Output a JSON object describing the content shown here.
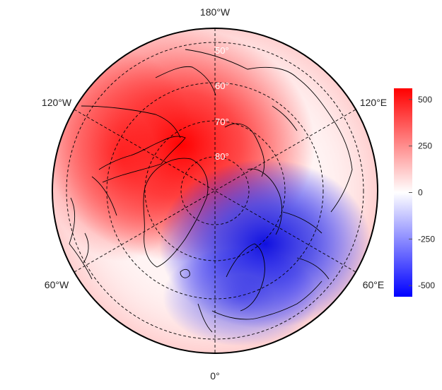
{
  "map": {
    "projection": "north-polar-stereographic",
    "longitude_labels": [
      {
        "text": "180°W",
        "lon": 180
      },
      {
        "text": "120°W",
        "lon": -120
      },
      {
        "text": "60°W",
        "lon": -60
      },
      {
        "text": "0°",
        "lon": 0
      },
      {
        "text": "60°E",
        "lon": 60
      },
      {
        "text": "120°E",
        "lon": 120
      }
    ],
    "latitude_labels": [
      {
        "text": "50°",
        "lat": 50
      },
      {
        "text": "60°",
        "lat": 60
      },
      {
        "text": "70°",
        "lat": 70
      },
      {
        "text": "80°",
        "lat": 80
      }
    ],
    "graticule": "dashed",
    "field": {
      "positive_center": {
        "lon": -95,
        "lat": 78
      },
      "negative_center": {
        "lon": 30,
        "lat": 67
      }
    }
  },
  "colorbar": {
    "ticks": [
      "500",
      "250",
      "0",
      "-250",
      "-500"
    ],
    "tick_values": [
      500,
      250,
      0,
      -250,
      -500
    ],
    "range": [
      -560,
      560
    ],
    "colors": {
      "max": "#ff0000",
      "mid": "#ffffff",
      "min": "#0000ff"
    }
  }
}
